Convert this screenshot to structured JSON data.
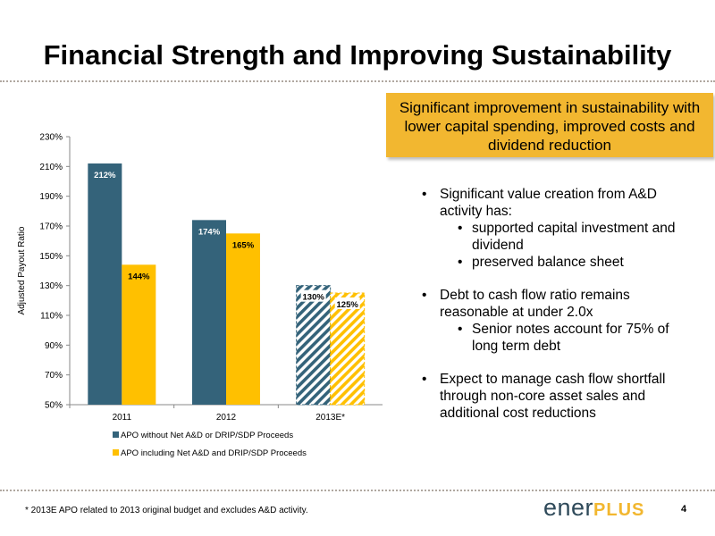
{
  "slide": {
    "title": "Financial Strength and Improving Sustainability",
    "callout": "Significant improvement in sustainability with lower capital spending, improved costs and dividend reduction",
    "bullets": {
      "b1": "Significant value creation from A&D activity has:",
      "b1_sub1": "supported capital investment and dividend",
      "b1_sub2": "preserved balance sheet",
      "b2": "Debt to cash flow ratio remains reasonable at under 2.0x",
      "b2_sub1": "Senior notes account for 75% of long term debt",
      "b3": "Expect to manage cash flow shortfall through non-core asset sales and additional cost reductions"
    },
    "footnote": "* 2013E APO related to 2013 original budget and excludes A&D activity.",
    "logo_part1": "ener",
    "logo_part2": "PLUS",
    "page_number": "4"
  },
  "colors": {
    "series1": "#34637a",
    "series2": "#ffc000",
    "callout_bg": "#f2b730",
    "logo_dark": "#2f4a5a"
  },
  "chart_data": {
    "type": "bar",
    "categories": [
      "2011",
      "2012",
      "2013E*"
    ],
    "series": [
      {
        "name": "APO without Net A&D or DRIP/SDP Proceeds",
        "values": [
          212,
          174,
          130
        ],
        "labels": [
          "212%",
          "174%",
          "130%"
        ],
        "color": "#34637a"
      },
      {
        "name": "APO including Net A&D and DRIP/SDP Proceeds",
        "values": [
          144,
          165,
          125
        ],
        "labels": [
          "144%",
          "165%",
          "125%"
        ],
        "color": "#ffc000"
      }
    ],
    "estimate_hatched": [
      false,
      false,
      true
    ],
    "ylabel": "Adjusted Payout Ratio",
    "ylim": [
      50,
      230
    ],
    "yticks": [
      50,
      70,
      90,
      110,
      130,
      150,
      170,
      190,
      210,
      230
    ],
    "ytick_labels": [
      "50%",
      "70%",
      "90%",
      "110%",
      "130%",
      "150%",
      "170%",
      "190%",
      "210%",
      "230%"
    ],
    "grid": false,
    "legend_position": "bottom"
  }
}
